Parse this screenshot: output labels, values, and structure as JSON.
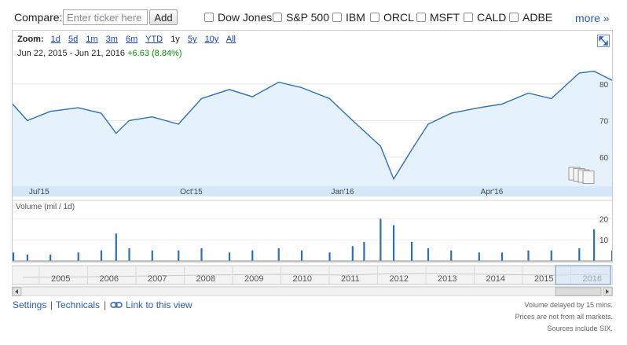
{
  "compare": {
    "label": "Compare:",
    "ticker_placeholder": "Enter ticker here",
    "add_label": "Add",
    "options": [
      "Dow Jones",
      "S&P 500",
      "IBM",
      "ORCL",
      "MSFT",
      "CALD",
      "ADBE"
    ],
    "more_label": "more »"
  },
  "zoom": {
    "label": "Zoom:",
    "options": [
      "1d",
      "5d",
      "1m",
      "3m",
      "6m",
      "YTD",
      "1y",
      "5y",
      "10y",
      "All"
    ],
    "selected": "1y"
  },
  "range": {
    "start": "Jun 22, 2015",
    "sep": "-",
    "end": "Jun 21, 2016",
    "change": "+6.63 (8.84%)"
  },
  "chart_data": [
    {
      "type": "area",
      "x_ticks": [
        "Jul'15",
        "Oct'15",
        "Jan'16",
        "Apr'16"
      ],
      "y_ticks": [
        60,
        70,
        80
      ],
      "ylim": [
        52,
        86
      ],
      "start_date": "2015-06-22",
      "end_date": "2016-06-21",
      "x": [
        "2015-06-22",
        "2015-07-01",
        "2015-07-15",
        "2015-08-01",
        "2015-08-15",
        "2015-08-24",
        "2015-09-01",
        "2015-09-15",
        "2015-10-01",
        "2015-10-15",
        "2015-11-01",
        "2015-11-15",
        "2015-12-01",
        "2015-12-15",
        "2016-01-01",
        "2016-01-15",
        "2016-02-01",
        "2016-02-09",
        "2016-02-20",
        "2016-03-01",
        "2016-03-15",
        "2016-04-01",
        "2016-04-15",
        "2016-05-01",
        "2016-05-15",
        "2016-06-01",
        "2016-06-10",
        "2016-06-21"
      ],
      "series": [
        {
          "values": [
            74.5,
            70.0,
            72.5,
            73.5,
            72.0,
            66.5,
            70.0,
            71.0,
            69.0,
            76.0,
            78.5,
            76.5,
            80.5,
            79.0,
            76.0,
            70.0,
            63.0,
            54.0,
            62.0,
            69.0,
            72.0,
            73.5,
            74.5,
            77.5,
            76.0,
            83.0,
            83.5,
            81.0
          ]
        }
      ]
    },
    {
      "type": "bar",
      "ylabel": "Volume (mil / 1d)",
      "y_ticks": [
        10,
        20
      ],
      "ylim": [
        0,
        22
      ],
      "x": [
        "2015-06-22",
        "2015-07-01",
        "2015-07-15",
        "2015-08-01",
        "2015-08-15",
        "2015-08-24",
        "2015-09-01",
        "2015-09-15",
        "2015-10-01",
        "2015-10-15",
        "2015-11-01",
        "2015-11-15",
        "2015-12-01",
        "2015-12-15",
        "2016-01-01",
        "2016-01-15",
        "2016-01-22",
        "2016-02-01",
        "2016-02-09",
        "2016-02-20",
        "2016-03-01",
        "2016-03-15",
        "2016-04-01",
        "2016-04-15",
        "2016-05-01",
        "2016-05-15",
        "2016-06-01",
        "2016-06-10",
        "2016-06-21"
      ],
      "values": [
        4,
        3,
        3,
        4,
        5,
        13,
        6,
        5,
        5,
        6,
        4,
        5,
        6,
        5,
        4,
        7,
        9,
        20,
        17,
        9,
        6,
        5,
        4,
        4,
        5,
        5,
        6,
        15,
        5
      ]
    }
  ],
  "timeline": {
    "years": [
      "2005",
      "2006",
      "2007",
      "2008",
      "2009",
      "2010",
      "2011",
      "2012",
      "2013",
      "2014",
      "2015",
      "2016"
    ]
  },
  "footer": {
    "settings": "Settings",
    "sep": "|",
    "technicals": "Technicals",
    "link": "Link to this view",
    "notes": [
      "Volume delayed by 15 mins.",
      "Prices are not from all markets.",
      "Sources include SIX."
    ]
  },
  "colors": {
    "line": "#2f6fb0",
    "fill": "#e6f2fb",
    "axis_band": "#d3e7f8",
    "volume": "#2f6fb0",
    "link": "#2a5db0",
    "positive": "#0b8f0b"
  }
}
